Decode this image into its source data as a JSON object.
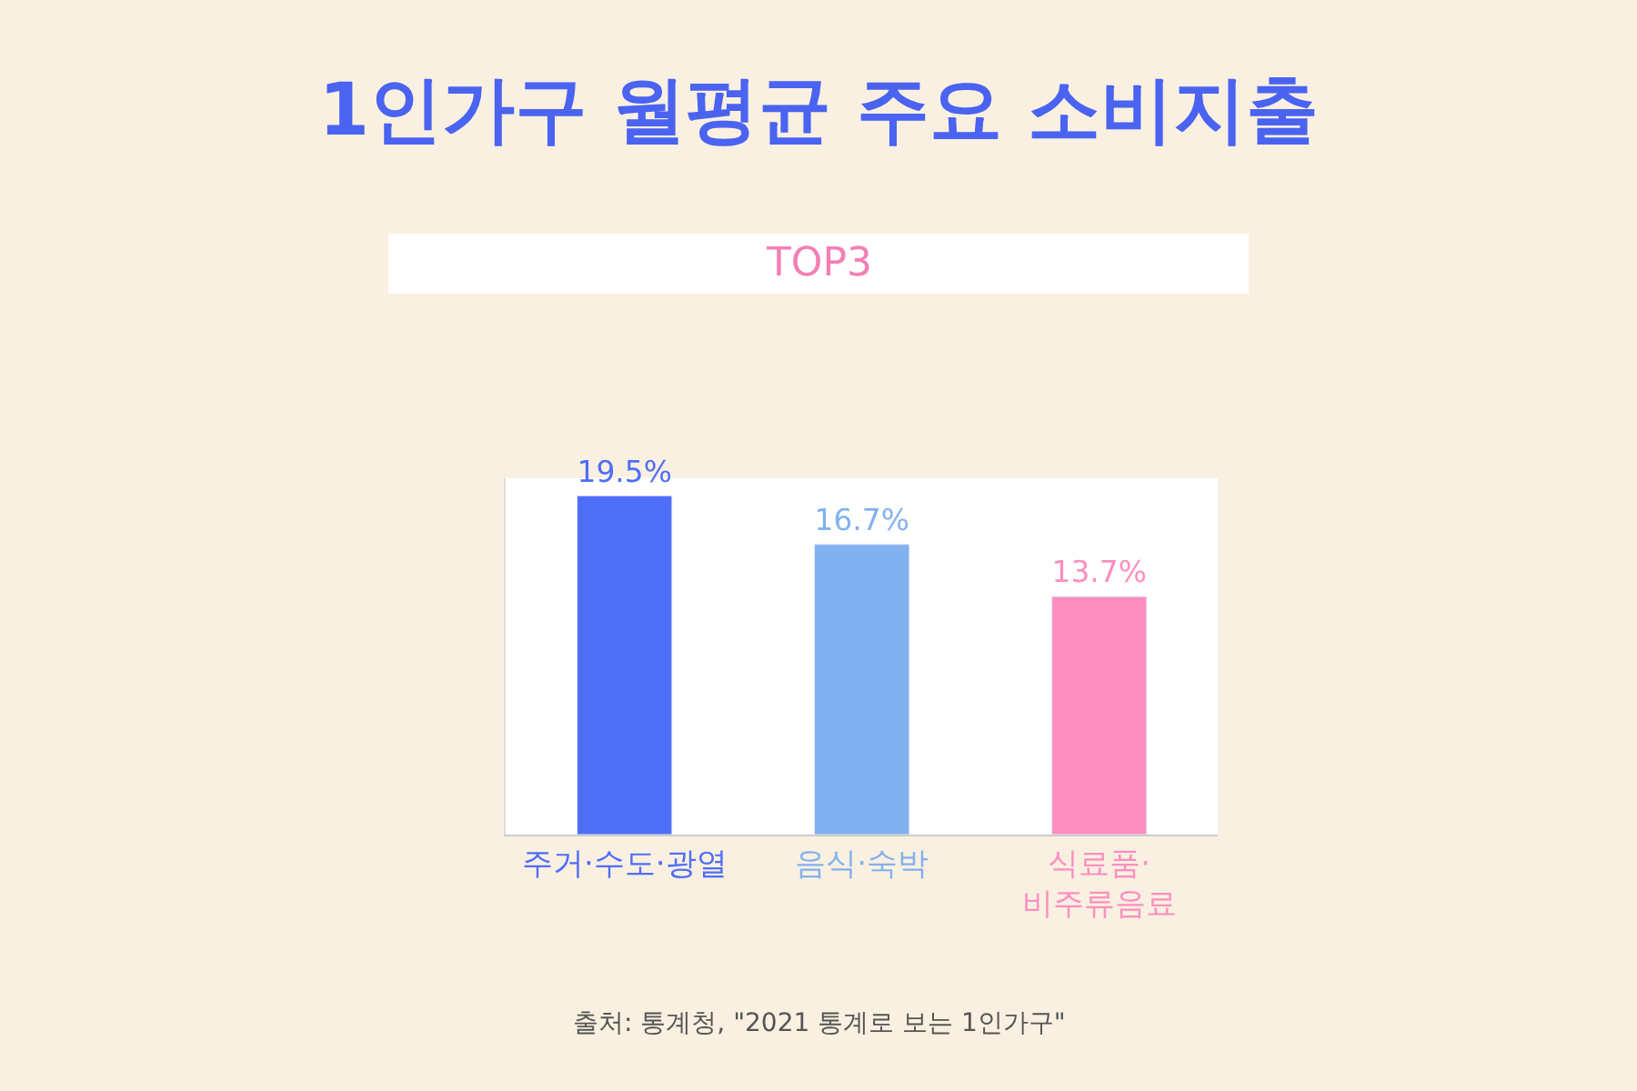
{
  "chart_data": {
    "type": "bar",
    "title": "1인가구 월평균 주요 소비지출",
    "subtitle": "TOP3",
    "categories": [
      "주거·수도·광열",
      "음식·숙박",
      "식료품·\n비주류음료"
    ],
    "values": [
      19.5,
      16.7,
      13.7
    ],
    "colors": [
      "#4f6ef7",
      "#82b1ef",
      "#fd8fc0"
    ],
    "value_labels": [
      "19.5%",
      "16.7%",
      "13.7%"
    ],
    "tick_labels": "x",
    "grid": false,
    "legend": false,
    "annotations": [
      "출처: 통계청, \"2021 통계로 보는 1인가구\""
    ]
  }
}
